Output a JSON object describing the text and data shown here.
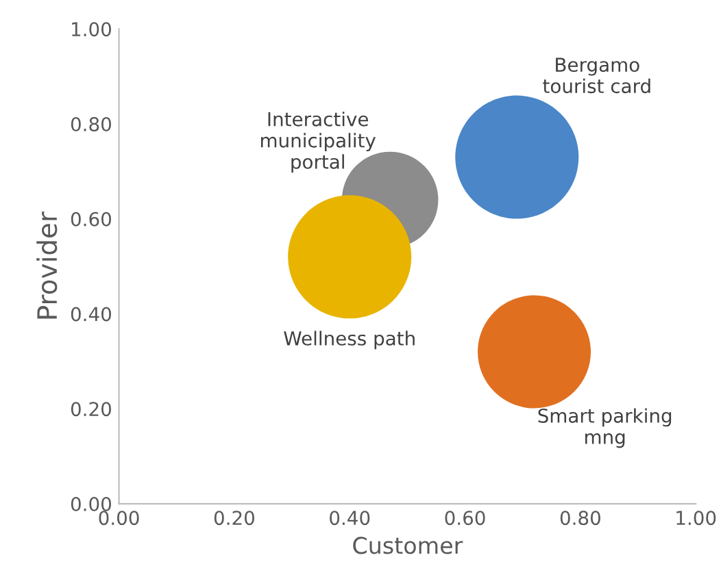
{
  "chart_data": {
    "type": "bubble",
    "xlabel": "Customer",
    "ylabel": "Provider",
    "xlim": [
      0,
      1
    ],
    "ylim": [
      0,
      1
    ],
    "xticks": [
      {
        "value": 0,
        "label": "0.00"
      },
      {
        "value": 0.2,
        "label": "0.20"
      },
      {
        "value": 0.4,
        "label": "0.40"
      },
      {
        "value": 0.6,
        "label": "0.60"
      },
      {
        "value": 0.8,
        "label": "0.80"
      },
      {
        "value": 1,
        "label": "1.00"
      }
    ],
    "yticks": [
      {
        "value": 0,
        "label": "0.00"
      },
      {
        "value": 0.2,
        "label": "0.20"
      },
      {
        "value": 0.4,
        "label": "0.40"
      },
      {
        "value": 0.6,
        "label": "0.60"
      },
      {
        "value": 0.8,
        "label": "0.80"
      },
      {
        "value": 1,
        "label": "1.00"
      }
    ],
    "grid": false,
    "legend": false,
    "series": [
      {
        "name": "Interactive\nmunicipality\nportal",
        "color": "#8c8c8c",
        "x": [
          0.47
        ],
        "values": [
          0.64
        ],
        "sizes": [
          0.61
        ]
      },
      {
        "name": "Bergamo\ntourist card",
        "color": "#4a86c8",
        "x": [
          0.69
        ],
        "values": [
          0.73
        ],
        "sizes": [
          1
        ]
      },
      {
        "name": "Wellness path",
        "color": "#e8b400",
        "x": [
          0.4
        ],
        "values": [
          0.52
        ],
        "sizes": [
          1
        ]
      },
      {
        "name": "Smart parking\nmng",
        "color": "#e07020",
        "x": [
          0.72
        ],
        "values": [
          0.32
        ],
        "sizes": [
          0.84
        ]
      }
    ]
  }
}
